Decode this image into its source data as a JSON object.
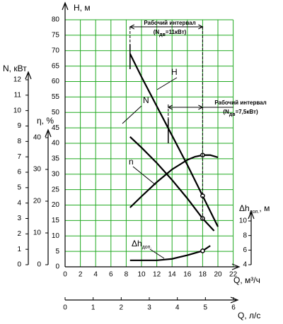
{
  "chart_data": {
    "type": "line",
    "y_label": "H, м",
    "x_label": "Q, м³/ч",
    "xlim": [
      0,
      22
    ],
    "xticks": [
      0,
      2,
      4,
      6,
      8,
      10,
      12,
      14,
      16,
      18,
      20,
      22
    ],
    "ylim": [
      0,
      80
    ],
    "yticks": [
      0,
      5,
      10,
      15,
      20,
      25,
      30,
      35,
      40,
      45,
      50,
      55,
      60,
      65,
      70,
      75,
      80
    ],
    "grid": true,
    "grid_color": "#22aa22",
    "axes": {
      "n": {
        "label": "N, кВт",
        "lim": [
          0,
          12
        ],
        "ticks": [
          0,
          1,
          2,
          3,
          4,
          5,
          6,
          7,
          8,
          9,
          10,
          11,
          12
        ]
      },
      "eta": {
        "label": "η, %",
        "lim": [
          0,
          40
        ],
        "ticks": [
          0,
          10,
          20,
          30,
          40
        ]
      },
      "dh": {
        "label": "Δh",
        "label_sub": "доп.",
        "label_rest": ", м",
        "lim": [
          4,
          10
        ],
        "ticks": [
          4,
          6,
          8,
          10
        ]
      },
      "ql": {
        "label": "Q, л/с",
        "lim": [
          0,
          6
        ],
        "ticks": [
          0,
          1,
          2,
          3,
          4,
          5,
          6
        ]
      }
    },
    "marker_x": 18,
    "series": [
      {
        "name": "H",
        "axis": "y",
        "color": "#000000",
        "x": [
          8.5,
          10,
          12,
          14,
          16,
          18,
          20
        ],
        "values": [
          69,
          61.5,
          52,
          42.5,
          33,
          23,
          13
        ]
      },
      {
        "name": "N",
        "axis": "n",
        "color": "#000000",
        "x": [
          8.5,
          10,
          12,
          14,
          16,
          18,
          19.5
        ],
        "values": [
          8.3,
          7.6,
          6.6,
          5.5,
          4.3,
          3.0,
          2.2
        ]
      },
      {
        "name": "n",
        "axis": "eta",
        "color": "#000000",
        "x": [
          8.5,
          10,
          12,
          14,
          16,
          17,
          18,
          19,
          20
        ],
        "values": [
          18,
          21.5,
          26,
          30,
          33,
          34,
          34.5,
          34.5,
          33.8
        ]
      },
      {
        "name": "Δh",
        "name_sub": "доп.",
        "axis": "dh",
        "color": "#000000",
        "x": [
          8.5,
          10,
          12,
          14,
          16,
          18,
          19
        ],
        "values": [
          4.6,
          4.6,
          4.6,
          4.8,
          5.3,
          5.9,
          6.6
        ]
      }
    ],
    "intervals": [
      {
        "label": "Рабочий интервал",
        "note": "(N",
        "note_sub": "дв",
        "note_rest": "=11кВт)",
        "x": [
          8.5,
          18
        ]
      },
      {
        "label": "Рабочий интервал",
        "note": "(N",
        "note_sub": "дв",
        "note_rest": "=7,5кВт)",
        "x": [
          13.5,
          18
        ]
      }
    ]
  }
}
